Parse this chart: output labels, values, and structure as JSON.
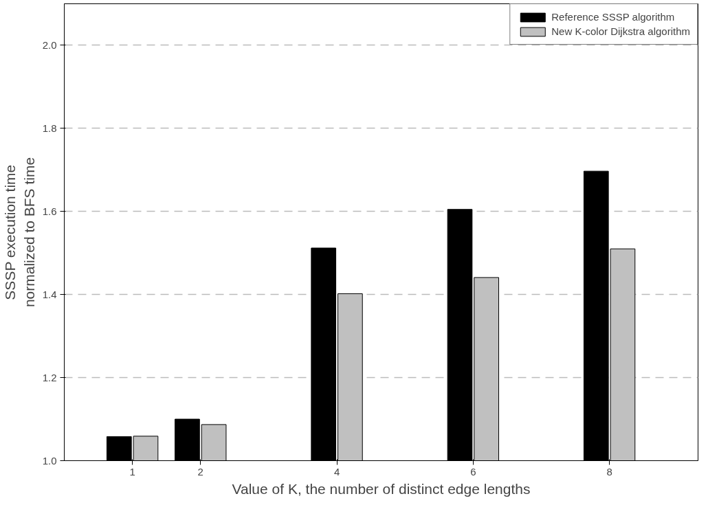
{
  "chart_data": {
    "type": "bar",
    "xlabel": "Value of K, the number of distinct edge lengths",
    "ylabel": "SSSP execution time\nnormalized to BFS time",
    "x": [
      1,
      2,
      4,
      6,
      8
    ],
    "series": [
      {
        "name": "Reference SSSP algorithm",
        "color": "#000000",
        "values": [
          1.058,
          1.1,
          1.512,
          1.605,
          1.697
        ]
      },
      {
        "name": "New K-color Dijkstra algorithm",
        "color": "#c0c0c0",
        "values": [
          1.059,
          1.087,
          1.402,
          1.441,
          1.51
        ]
      }
    ],
    "xlim": [
      0,
      9.3
    ],
    "xticks": [
      1,
      2,
      4,
      6,
      8
    ],
    "ylim": [
      1.0,
      2.1
    ],
    "yticks": [
      {
        "value": 1.0,
        "label": "1.0"
      },
      1.2,
      1.4,
      1.6,
      1.8,
      {
        "value": 2.0,
        "label": "2.0"
      }
    ],
    "grid": "y",
    "legend": "top right"
  }
}
